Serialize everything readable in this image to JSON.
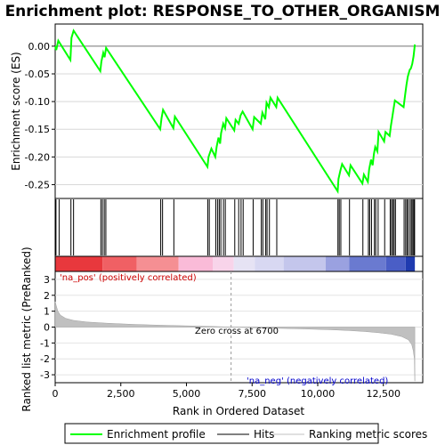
{
  "chart_data": {
    "type": "line",
    "title": "Enrichment plot: RESPONSE_TO_OTHER_ORGANISM",
    "top_panel": {
      "ylabel": "Enrichment score (ES)",
      "ylim": [
        -0.275,
        0.04
      ],
      "yticks": [
        0.0,
        -0.05,
        -0.1,
        -0.15,
        -0.2,
        -0.25
      ],
      "ytick_labels": [
        "0.00",
        "-0.05",
        "-0.10",
        "-0.15",
        "-0.20",
        "-0.25"
      ],
      "grid": true,
      "color": "#00ff00",
      "points": [
        [
          0,
          0.0
        ],
        [
          40,
          -0.007
        ],
        [
          120,
          0.01
        ],
        [
          580,
          -0.025
        ],
        [
          620,
          0.015
        ],
        [
          700,
          0.028
        ],
        [
          1720,
          -0.045
        ],
        [
          1760,
          -0.028
        ],
        [
          1830,
          -0.012
        ],
        [
          1880,
          -0.02
        ],
        [
          1940,
          -0.003
        ],
        [
          4000,
          -0.15
        ],
        [
          4050,
          -0.13
        ],
        [
          4110,
          -0.115
        ],
        [
          4500,
          -0.148
        ],
        [
          4560,
          -0.127
        ],
        [
          5800,
          -0.218
        ],
        [
          5840,
          -0.2
        ],
        [
          5950,
          -0.185
        ],
        [
          6100,
          -0.2
        ],
        [
          6150,
          -0.182
        ],
        [
          6220,
          -0.165
        ],
        [
          6280,
          -0.176
        ],
        [
          6320,
          -0.157
        ],
        [
          6400,
          -0.14
        ],
        [
          6470,
          -0.148
        ],
        [
          6520,
          -0.13
        ],
        [
          6820,
          -0.152
        ],
        [
          6870,
          -0.133
        ],
        [
          6990,
          -0.14
        ],
        [
          7060,
          -0.125
        ],
        [
          7140,
          -0.118
        ],
        [
          7520,
          -0.15
        ],
        [
          7580,
          -0.128
        ],
        [
          7830,
          -0.14
        ],
        [
          7890,
          -0.12
        ],
        [
          8000,
          -0.132
        ],
        [
          8050,
          -0.102
        ],
        [
          8140,
          -0.11
        ],
        [
          8200,
          -0.093
        ],
        [
          8420,
          -0.11
        ],
        [
          8470,
          -0.093
        ],
        [
          10760,
          -0.262
        ],
        [
          10790,
          -0.24
        ],
        [
          10860,
          -0.225
        ],
        [
          10930,
          -0.213
        ],
        [
          11190,
          -0.233
        ],
        [
          11250,
          -0.215
        ],
        [
          11700,
          -0.248
        ],
        [
          11760,
          -0.232
        ],
        [
          11910,
          -0.245
        ],
        [
          11960,
          -0.222
        ],
        [
          12030,
          -0.205
        ],
        [
          12090,
          -0.215
        ],
        [
          12140,
          -0.195
        ],
        [
          12190,
          -0.182
        ],
        [
          12270,
          -0.19
        ],
        [
          12320,
          -0.155
        ],
        [
          12530,
          -0.172
        ],
        [
          12580,
          -0.155
        ],
        [
          12740,
          -0.162
        ],
        [
          12790,
          -0.143
        ],
        [
          12840,
          -0.128
        ],
        [
          12890,
          -0.112
        ],
        [
          12940,
          -0.098
        ],
        [
          13270,
          -0.11
        ],
        [
          13330,
          -0.088
        ],
        [
          13380,
          -0.07
        ],
        [
          13430,
          -0.055
        ],
        [
          13500,
          -0.043
        ],
        [
          13550,
          -0.04
        ],
        [
          13600,
          -0.032
        ],
        [
          13650,
          -0.018
        ],
        [
          13680,
          -0.005
        ],
        [
          13700,
          0.003
        ]
      ]
    },
    "hits": [
      30,
      150,
      600,
      700,
      1740,
      1800,
      1870,
      1930,
      4020,
      4090,
      4520,
      5810,
      5870,
      6120,
      6190,
      6250,
      6310,
      6410,
      6480,
      6840,
      6990,
      7080,
      7160,
      7540,
      7850,
      7910,
      8020,
      8070,
      8160,
      8440,
      10770,
      10820,
      10880,
      11210,
      11720,
      11930,
      11980,
      12050,
      12160,
      12210,
      12300,
      12550,
      12760,
      12810,
      12860,
      12910,
      12960,
      13290,
      13350,
      13400,
      13450,
      13520,
      13570,
      13620,
      13660,
      13690
    ],
    "heatmap": {
      "segments": [
        {
          "from": 0,
          "to": 1800,
          "color": "#e8383d"
        },
        {
          "from": 1800,
          "to": 3100,
          "color": "#f06064"
        },
        {
          "from": 3100,
          "to": 4700,
          "color": "#f58f93"
        },
        {
          "from": 4700,
          "to": 6000,
          "color": "#fabbd8"
        },
        {
          "from": 6000,
          "to": 6800,
          "color": "#f8d4ea"
        },
        {
          "from": 6800,
          "to": 7600,
          "color": "#e6e3f4"
        },
        {
          "from": 7600,
          "to": 8700,
          "color": "#d8d8f2"
        },
        {
          "from": 8700,
          "to": 10300,
          "color": "#c4c6ec"
        },
        {
          "from": 10300,
          "to": 11200,
          "color": "#9aa1e0"
        },
        {
          "from": 11200,
          "to": 12600,
          "color": "#6a7ad0"
        },
        {
          "from": 12600,
          "to": 13350,
          "color": "#4a5ec6"
        },
        {
          "from": 13350,
          "to": 13700,
          "color": "#1f3bb0"
        }
      ]
    },
    "bottom_panel": {
      "ylabel": "Ranked list metric (PreRanked)",
      "xlabel": "Rank in Ordered Dataset",
      "ylim": [
        -3.5,
        3.5
      ],
      "yticks": [
        3,
        2,
        1,
        0,
        -1,
        -2,
        -3
      ],
      "ytick_labels": [
        "3",
        "2",
        "1",
        "0",
        "-1",
        "-2",
        "-3"
      ],
      "xlim": [
        0,
        14000
      ],
      "xticks": [
        0,
        2500,
        5000,
        7500,
        10000,
        12500
      ],
      "xtick_labels": [
        "0",
        "2,500",
        "5,000",
        "7,500",
        "10,000",
        "12,500"
      ],
      "metric_points": [
        [
          0,
          1.6
        ],
        [
          40,
          1.35
        ],
        [
          100,
          1.0
        ],
        [
          200,
          0.75
        ],
        [
          400,
          0.55
        ],
        [
          700,
          0.42
        ],
        [
          1200,
          0.32
        ],
        [
          2000,
          0.24
        ],
        [
          3000,
          0.17
        ],
        [
          4000,
          0.12
        ],
        [
          5000,
          0.08
        ],
        [
          6000,
          0.04
        ],
        [
          6700,
          0.0
        ],
        [
          7500,
          -0.04
        ],
        [
          8500,
          -0.08
        ],
        [
          9500,
          -0.12
        ],
        [
          10500,
          -0.17
        ],
        [
          11200,
          -0.22
        ],
        [
          11800,
          -0.28
        ],
        [
          12300,
          -0.35
        ],
        [
          12800,
          -0.45
        ],
        [
          13200,
          -0.6
        ],
        [
          13450,
          -0.8
        ],
        [
          13580,
          -1.1
        ],
        [
          13640,
          -1.5
        ],
        [
          13680,
          -2.0
        ],
        [
          13700,
          -3.4
        ]
      ],
      "zero_cross_label": "Zero cross at 6700",
      "zero_cross": 6700,
      "pos_label": "'na_pos' (positively correlated)",
      "neg_label": "'na_neg' (negatively correlated)"
    },
    "legend": {
      "items": [
        {
          "label": "Enrichment profile",
          "color": "#00ff00"
        },
        {
          "label": "Hits",
          "color": "#000000"
        },
        {
          "label": "Ranking metric scores",
          "color": "#c0c0c0"
        }
      ]
    }
  }
}
